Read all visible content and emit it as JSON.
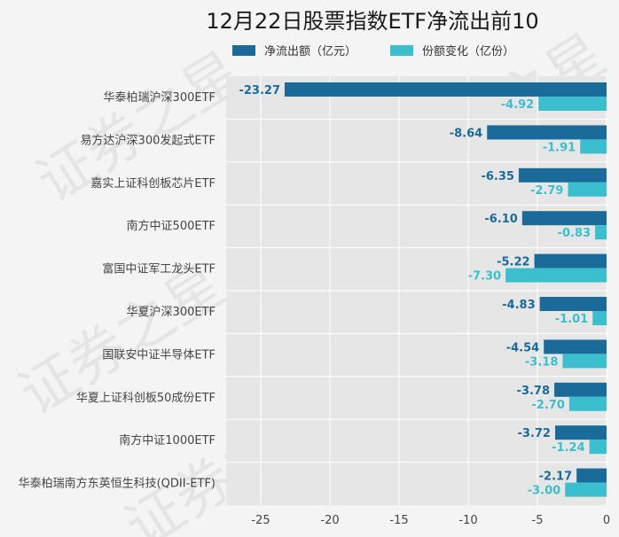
{
  "chart_data": {
    "type": "bar",
    "orientation": "horizontal",
    "title": "12月22日股票指数ETF净流出前10",
    "watermark": "证券之星",
    "categories": [
      "华泰柏瑞沪深300ETF",
      "易方达沪深300发起式ETF",
      "嘉实上证科创板芯片ETF",
      "南方中证500ETF",
      "富国中证军工龙头ETF",
      "华夏沪深300ETF",
      "国联安中证半导体ETF",
      "华夏上证科创板50成份ETF",
      "南方中证1000ETF",
      "华泰柏瑞南方东英恒生科技(QDII-ETF)"
    ],
    "series": [
      {
        "name": "净流出额（亿元）",
        "color": "#1a6b9a",
        "values": [
          -23.27,
          -8.64,
          -6.35,
          -6.1,
          -5.22,
          -4.83,
          -4.54,
          -3.78,
          -3.72,
          -2.17
        ],
        "labels": [
          "-23.27",
          "-8.64",
          "-6.35",
          "-6.10",
          "-5.22",
          "-4.83",
          "-4.54",
          "-3.78",
          "-3.72",
          "-2.17"
        ]
      },
      {
        "name": "份额变化（亿份）",
        "color": "#3bbfcf",
        "values": [
          -4.92,
          -1.91,
          -2.79,
          -0.83,
          -7.3,
          -1.01,
          -3.18,
          -2.7,
          -1.24,
          -3.0
        ],
        "labels": [
          "-4.92",
          "-1.91",
          "-2.79",
          "-0.83",
          "-7.30",
          "-1.01",
          "-3.18",
          "-2.70",
          "-1.24",
          "-3.00"
        ]
      }
    ],
    "xlim": [
      -27.5,
      0
    ],
    "xticks": [
      -25,
      -20,
      -15,
      -10,
      -5,
      0
    ],
    "xtick_labels": [
      "-25",
      "-20",
      "-15",
      "-10",
      "-5",
      "0"
    ],
    "grid": true,
    "legend_position": "top"
  }
}
